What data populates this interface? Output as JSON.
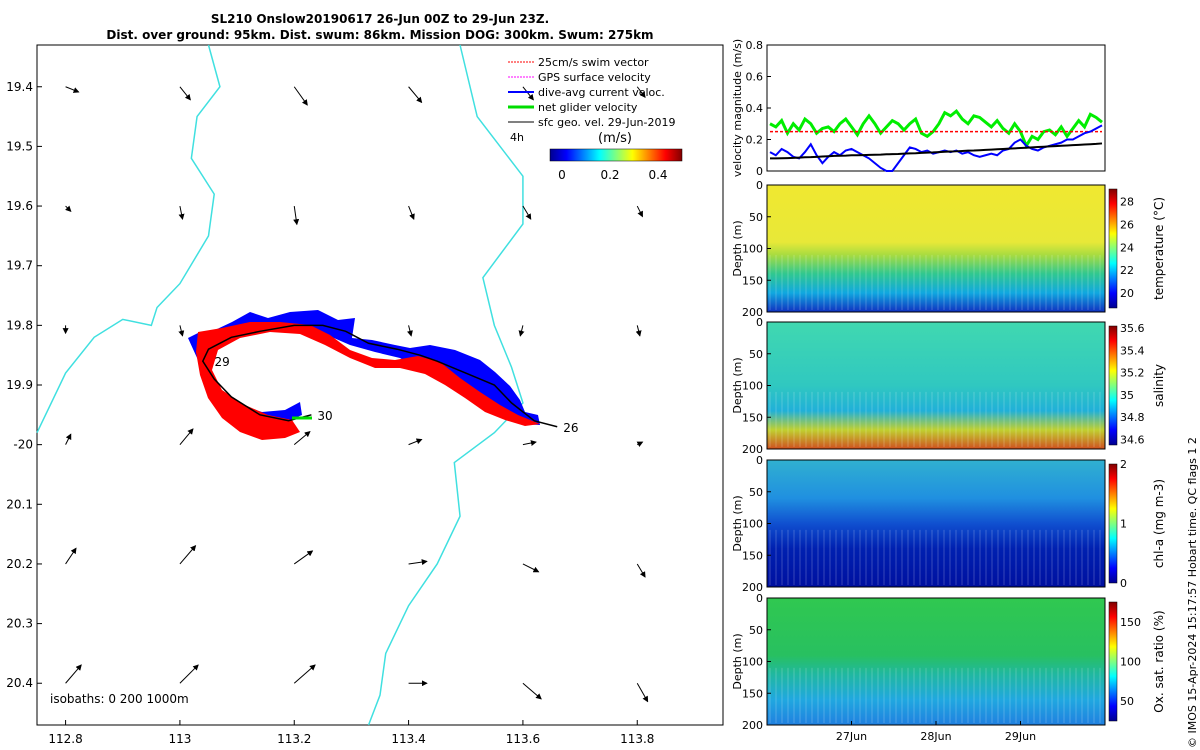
{
  "header": {
    "title_line1": "SL210 Onslow20190617 26-Jun 00Z to 29-Jun 23Z.",
    "title_line2": "Dist. over ground: 95km. Dist. swum: 86km. Mission DOG: 300km. Swum: 275km"
  },
  "copyright": "© IMOS 15-Apr-2024 15:17:57 Hobart time. QC flags 1  2",
  "chart_data": [
    {
      "type": "scatter",
      "name": "map",
      "xlim": [
        112.75,
        113.95
      ],
      "ylim": [
        -20.47,
        -19.33
      ],
      "x_ticks": [
        112.8,
        113,
        113.2,
        113.4,
        113.6,
        113.8
      ],
      "y_ticks": [
        -19.4,
        -19.5,
        -19.6,
        -19.7,
        -19.8,
        -19.9,
        -20,
        -20.1,
        -20.2,
        -20.3,
        -20.4
      ],
      "y_tick_labels": [
        "19.4",
        "19.5",
        "19.6",
        "19.7",
        "19.8",
        "19.9",
        "-20",
        "20.1",
        "20.2",
        "20.3",
        "20.4"
      ],
      "legend": {
        "placement": "top-right",
        "items": [
          {
            "label": "25cm/s swim vector",
            "color": "#ff0000"
          },
          {
            "label": "GPS surface velocity",
            "color": "#ff00ff"
          },
          {
            "label": "dive-avg current veloc.",
            "color": "#0000ff"
          },
          {
            "label": "net glider velocity",
            "color": "#00dd00"
          },
          {
            "label": "sfc geo. vel. 29-Jun-2019",
            "color": "#000000"
          }
        ],
        "interval_label": "4h"
      },
      "colorbar": {
        "label": "(m/s)",
        "ticks": [
          "0",
          "0.2",
          "0.4"
        ],
        "range": [
          -0.05,
          0.5
        ]
      },
      "isobath_label": "isobaths: 0   200  1000m",
      "day_markers": [
        {
          "label": "26",
          "lon": 113.66,
          "lat": -19.97
        },
        {
          "label": "29",
          "lon": 113.05,
          "lat": -19.86
        },
        {
          "label": "30",
          "lon": 113.23,
          "lat": -19.95
        }
      ],
      "glider_track": [
        [
          113.66,
          -19.97
        ],
        [
          113.62,
          -19.96
        ],
        [
          113.58,
          -19.93
        ],
        [
          113.55,
          -19.9
        ],
        [
          113.5,
          -19.88
        ],
        [
          113.45,
          -19.86
        ],
        [
          113.42,
          -19.85
        ],
        [
          113.38,
          -19.84
        ],
        [
          113.33,
          -19.83
        ],
        [
          113.29,
          -19.81
        ],
        [
          113.25,
          -19.8
        ],
        [
          113.2,
          -19.8
        ],
        [
          113.14,
          -19.81
        ],
        [
          113.09,
          -19.82
        ],
        [
          113.05,
          -19.84
        ],
        [
          113.04,
          -19.86
        ],
        [
          113.06,
          -19.89
        ],
        [
          113.09,
          -19.92
        ],
        [
          113.14,
          -19.95
        ],
        [
          113.19,
          -19.96
        ],
        [
          113.23,
          -19.95
        ]
      ],
      "isobath_200": [
        [
          113.05,
          -19.33
        ],
        [
          113.07,
          -19.4
        ],
        [
          113.03,
          -19.45
        ],
        [
          113.02,
          -19.52
        ],
        [
          113.06,
          -19.58
        ],
        [
          113.05,
          -19.65
        ],
        [
          113.0,
          -19.73
        ],
        [
          112.96,
          -19.77
        ],
        [
          112.95,
          -19.8
        ],
        [
          112.9,
          -19.79
        ],
        [
          112.85,
          -19.82
        ],
        [
          112.8,
          -19.88
        ],
        [
          112.75,
          -19.98
        ]
      ],
      "isobath_1000": [
        [
          113.49,
          -19.33
        ],
        [
          113.52,
          -19.45
        ],
        [
          113.6,
          -19.55
        ],
        [
          113.6,
          -19.63
        ],
        [
          113.53,
          -19.72
        ],
        [
          113.55,
          -19.8
        ],
        [
          113.58,
          -19.87
        ],
        [
          113.6,
          -19.93
        ],
        [
          113.55,
          -19.98
        ],
        [
          113.48,
          -20.03
        ],
        [
          113.49,
          -20.12
        ],
        [
          113.45,
          -20.2
        ],
        [
          113.4,
          -20.27
        ],
        [
          113.36,
          -20.35
        ],
        [
          113.35,
          -20.42
        ],
        [
          113.33,
          -20.47
        ]
      ],
      "current_vectors": [
        {
          "lon": 112.8,
          "lat": -19.4,
          "u": 0.05,
          "v": -0.02
        },
        {
          "lon": 113.0,
          "lat": -19.4,
          "u": 0.04,
          "v": -0.05
        },
        {
          "lon": 113.2,
          "lat": -19.4,
          "u": 0.05,
          "v": -0.07
        },
        {
          "lon": 113.4,
          "lat": -19.4,
          "u": 0.05,
          "v": -0.06
        },
        {
          "lon": 113.6,
          "lat": -19.4,
          "u": 0.04,
          "v": -0.05
        },
        {
          "lon": 113.8,
          "lat": -19.4,
          "u": 0.03,
          "v": -0.04
        },
        {
          "lon": 112.8,
          "lat": -19.6,
          "u": 0.02,
          "v": -0.02
        },
        {
          "lon": 113.0,
          "lat": -19.6,
          "u": 0.01,
          "v": -0.05
        },
        {
          "lon": 113.2,
          "lat": -19.6,
          "u": 0.01,
          "v": -0.07
        },
        {
          "lon": 113.4,
          "lat": -19.6,
          "u": 0.02,
          "v": -0.05
        },
        {
          "lon": 113.6,
          "lat": -19.6,
          "u": 0.03,
          "v": -0.05
        },
        {
          "lon": 113.8,
          "lat": -19.6,
          "u": 0.02,
          "v": -0.04
        },
        {
          "lon": 112.8,
          "lat": -19.8,
          "u": 0.0,
          "v": -0.03
        },
        {
          "lon": 113.0,
          "lat": -19.8,
          "u": 0.01,
          "v": -0.04
        },
        {
          "lon": 113.4,
          "lat": -19.8,
          "u": 0.01,
          "v": -0.04
        },
        {
          "lon": 113.6,
          "lat": -19.8,
          "u": -0.01,
          "v": -0.04
        },
        {
          "lon": 113.8,
          "lat": -19.8,
          "u": 0.01,
          "v": -0.04
        },
        {
          "lon": 112.8,
          "lat": -20.0,
          "u": 0.02,
          "v": 0.04
        },
        {
          "lon": 113.0,
          "lat": -20.0,
          "u": 0.05,
          "v": 0.06
        },
        {
          "lon": 113.2,
          "lat": -20.0,
          "u": 0.06,
          "v": 0.05
        },
        {
          "lon": 113.4,
          "lat": -20.0,
          "u": 0.05,
          "v": 0.02
        },
        {
          "lon": 113.6,
          "lat": -20.0,
          "u": 0.05,
          "v": 0.01
        },
        {
          "lon": 113.8,
          "lat": -20.0,
          "u": 0.02,
          "v": 0.01
        },
        {
          "lon": 112.8,
          "lat": -20.2,
          "u": 0.04,
          "v": 0.06
        },
        {
          "lon": 113.0,
          "lat": -20.2,
          "u": 0.06,
          "v": 0.07
        },
        {
          "lon": 113.2,
          "lat": -20.2,
          "u": 0.07,
          "v": 0.05
        },
        {
          "lon": 113.4,
          "lat": -20.2,
          "u": 0.07,
          "v": 0.01
        },
        {
          "lon": 113.6,
          "lat": -20.2,
          "u": 0.06,
          "v": -0.03
        },
        {
          "lon": 113.8,
          "lat": -20.2,
          "u": 0.03,
          "v": -0.05
        },
        {
          "lon": 112.8,
          "lat": -20.4,
          "u": 0.06,
          "v": 0.07
        },
        {
          "lon": 113.0,
          "lat": -20.4,
          "u": 0.07,
          "v": 0.07
        },
        {
          "lon": 113.2,
          "lat": -20.4,
          "u": 0.08,
          "v": 0.07
        },
        {
          "lon": 113.4,
          "lat": -20.4,
          "u": 0.07,
          "v": 0.0
        },
        {
          "lon": 113.6,
          "lat": -20.4,
          "u": 0.07,
          "v": -0.06
        },
        {
          "lon": 113.8,
          "lat": -20.4,
          "u": 0.04,
          "v": -0.07
        }
      ]
    },
    {
      "type": "line",
      "name": "velocity",
      "ylabel": "velocity magnitude (m/s)",
      "ylim": [
        0,
        0.8
      ],
      "y_ticks": [
        "0",
        "0.2",
        "0.4",
        "0.6",
        "0.8"
      ],
      "x_range_days": [
        26,
        30
      ],
      "series": [
        {
          "color": "#00ee00",
          "values": [
            0.3,
            0.28,
            0.32,
            0.24,
            0.3,
            0.26,
            0.33,
            0.3,
            0.24,
            0.27,
            0.28,
            0.25,
            0.3,
            0.33,
            0.28,
            0.23,
            0.3,
            0.35,
            0.3,
            0.24,
            0.28,
            0.32,
            0.3,
            0.26,
            0.3,
            0.33,
            0.24,
            0.22,
            0.25,
            0.3,
            0.37,
            0.35,
            0.38,
            0.33,
            0.3,
            0.35,
            0.34,
            0.31,
            0.28,
            0.32,
            0.27,
            0.24,
            0.3,
            0.25,
            0.16,
            0.22,
            0.2,
            0.25,
            0.26,
            0.23,
            0.28,
            0.22,
            0.27,
            0.32,
            0.28,
            0.36,
            0.34,
            0.31
          ]
        },
        {
          "color": "#ff0000",
          "values": [
            0.25,
            0.25,
            0.25,
            0.25,
            0.25,
            0.25,
            0.25,
            0.25,
            0.25,
            0.25,
            0.25,
            0.25,
            0.25,
            0.25,
            0.25,
            0.25,
            0.25,
            0.25,
            0.25,
            0.25,
            0.25,
            0.25,
            0.25,
            0.25,
            0.25,
            0.25,
            0.25,
            0.25,
            0.25,
            0.25,
            0.25,
            0.25,
            0.25,
            0.25,
            0.25,
            0.25,
            0.25,
            0.25,
            0.25,
            0.25,
            0.25,
            0.25,
            0.25,
            0.25,
            0.25,
            0.25,
            0.25,
            0.25,
            0.25,
            0.25,
            0.25,
            0.25,
            0.25,
            0.25,
            0.25,
            0.25,
            0.25,
            0.25
          ]
        },
        {
          "color": "#0000ff",
          "values": [
            0.12,
            0.1,
            0.14,
            0.12,
            0.09,
            0.08,
            0.12,
            0.17,
            0.1,
            0.05,
            0.09,
            0.12,
            0.1,
            0.13,
            0.14,
            0.12,
            0.1,
            0.08,
            0.05,
            0.02,
            0.0,
            0.0,
            0.05,
            0.1,
            0.15,
            0.14,
            0.12,
            0.13,
            0.11,
            0.12,
            0.13,
            0.12,
            0.13,
            0.11,
            0.12,
            0.1,
            0.09,
            0.1,
            0.11,
            0.1,
            0.13,
            0.14,
            0.18,
            0.2,
            0.16,
            0.14,
            0.13,
            0.15,
            0.16,
            0.17,
            0.18,
            0.2,
            0.2,
            0.22,
            0.24,
            0.25,
            0.27,
            0.29
          ]
        },
        {
          "color": "#000000",
          "values": [
            0.08,
            0.08,
            0.081,
            0.082,
            0.083,
            0.085,
            0.087,
            0.088,
            0.09,
            0.092,
            0.094,
            0.096,
            0.097,
            0.098,
            0.1,
            0.1,
            0.101,
            0.102,
            0.103,
            0.104,
            0.106,
            0.107,
            0.108,
            0.11,
            0.112,
            0.113,
            0.115,
            0.117,
            0.118,
            0.12,
            0.122,
            0.124,
            0.125,
            0.127,
            0.129,
            0.13,
            0.132,
            0.134,
            0.136,
            0.138,
            0.14,
            0.142,
            0.144,
            0.146,
            0.148,
            0.15,
            0.152,
            0.154,
            0.156,
            0.158,
            0.16,
            0.162,
            0.164,
            0.166,
            0.168,
            0.17,
            0.172,
            0.175
          ]
        }
      ]
    },
    {
      "type": "heatmap",
      "name": "temperature",
      "ylabel": "Depth (m)",
      "colorbar_label": "temperature (°C)",
      "y_ticks": [
        "0",
        "50",
        "100",
        "150",
        "200"
      ],
      "colorbar_ticks": [
        "20",
        "22",
        "24",
        "26",
        "28"
      ],
      "value_range": [
        18.7,
        29.1
      ]
    },
    {
      "type": "heatmap",
      "name": "salinity",
      "ylabel": "Depth (m)",
      "colorbar_label": "salinity",
      "y_ticks": [
        "0",
        "50",
        "100",
        "150",
        "200"
      ],
      "colorbar_ticks": [
        "34.6",
        "34.8",
        "35",
        "35.2",
        "35.4",
        "35.6"
      ],
      "value_range": [
        34.55,
        35.62
      ]
    },
    {
      "type": "heatmap",
      "name": "chla",
      "ylabel": "Depth (m)",
      "colorbar_label": "chl-a (mg m-3)",
      "y_ticks": [
        "0",
        "50",
        "100",
        "150",
        "200"
      ],
      "colorbar_ticks": [
        "0",
        "1",
        "2"
      ],
      "value_range": [
        0,
        2
      ]
    },
    {
      "type": "heatmap",
      "name": "oxygen",
      "ylabel": "Depth (m)",
      "colorbar_label": "Ox. sat. ratio (%)",
      "y_ticks": [
        "0",
        "50",
        "100",
        "150",
        "200"
      ],
      "colorbar_ticks": [
        "50",
        "100",
        "150"
      ],
      "value_range": [
        25,
        175
      ],
      "x_tick_labels": [
        "27Jun",
        "28Jun",
        "29Jun"
      ]
    }
  ]
}
